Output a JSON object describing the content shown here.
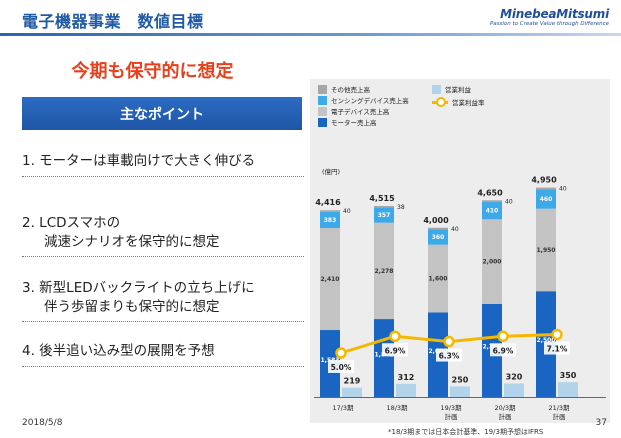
{
  "header": {
    "title": "電子機器事業　数値目標",
    "logo_name": "MinebeaMitsumi",
    "logo_tagline": "Passion to Create Value through Difference"
  },
  "headline": "今期も保守的に想定",
  "points_heading": "主なポイント",
  "points": [
    "1. モーターは車載向けで大きく伸びる",
    "2. LCDスマホの",
    "減速シナリオを保守的に想定",
    "3. 新型LEDバックライトの立ち上げに",
    "伴う歩留まりも保守的に想定",
    "4. 後半追い込み型の展開を予想"
  ],
  "footer": {
    "date": "2018/5/8",
    "note": "*18/3期までは日本会計基準、19/3期予想はIFRS",
    "page": "37"
  },
  "colors": {
    "other": "#a6a6a6",
    "sensing": "#3da9e8",
    "electronic": "#c3c3c3",
    "motor": "#1b65c2",
    "op_income": "#b2d4ea",
    "op_margin": "#f5b800",
    "title": "#1f5aa6",
    "headline": "#e8401c"
  },
  "chart_data": {
    "type": "bar",
    "unit_label": "(億円)",
    "categories": [
      [
        "17/3期"
      ],
      [
        "18/3期"
      ],
      [
        "19/3期",
        "計画"
      ],
      [
        "20/3期",
        "計画"
      ],
      [
        "21/3期",
        "計画"
      ]
    ],
    "legend": {
      "other": "その他売上高",
      "sensing": "センシングデバイス売上高",
      "electronic": "電子デバイス売上高",
      "motor": "モーター売上高",
      "op_income": "営業利益",
      "op_margin": "営業利益率"
    },
    "stacked_sales": [
      {
        "name": "モーター売上高",
        "key": "motor",
        "values": [
          1583,
          1842,
          2000,
          2200,
          2500
        ]
      },
      {
        "name": "電子デバイス売上高",
        "key": "electronic",
        "values": [
          2410,
          2278,
          1600,
          2000,
          1950
        ]
      },
      {
        "name": "センシングデバイス売上高",
        "key": "sensing",
        "values": [
          383,
          357,
          360,
          410,
          460
        ]
      },
      {
        "name": "その他売上高",
        "key": "other",
        "values": [
          40,
          38,
          40,
          40,
          40
        ]
      }
    ],
    "sales_totals": [
      4416,
      4515,
      4000,
      4650,
      4950
    ],
    "total_labels": [
      "4,416",
      "4,515",
      "4,000",
      "4,650",
      "4,950"
    ],
    "segment_labels": {
      "motor": [
        "1,583",
        "1,842",
        "2,000",
        "2,200",
        "2,500"
      ],
      "electronic": [
        "2,410",
        "2,278",
        "1,600",
        "2,000",
        "1,950"
      ],
      "sensing": [
        "383",
        "357",
        "360",
        "410",
        "460"
      ],
      "other": [
        "40",
        "38",
        "40",
        "40",
        "40"
      ]
    },
    "operating_income": {
      "name": "営業利益",
      "values": [
        219,
        312,
        250,
        320,
        350
      ]
    },
    "operating_margin": {
      "name": "営業利益率",
      "values": [
        5.0,
        6.9,
        6.3,
        6.9,
        7.1
      ],
      "labels": [
        "5.0%",
        "6.9%",
        "6.3%",
        "6.9%",
        "7.1%"
      ]
    },
    "ylim_sales": [
      0,
      5200
    ],
    "ylim_margin": [
      0,
      25
    ]
  }
}
